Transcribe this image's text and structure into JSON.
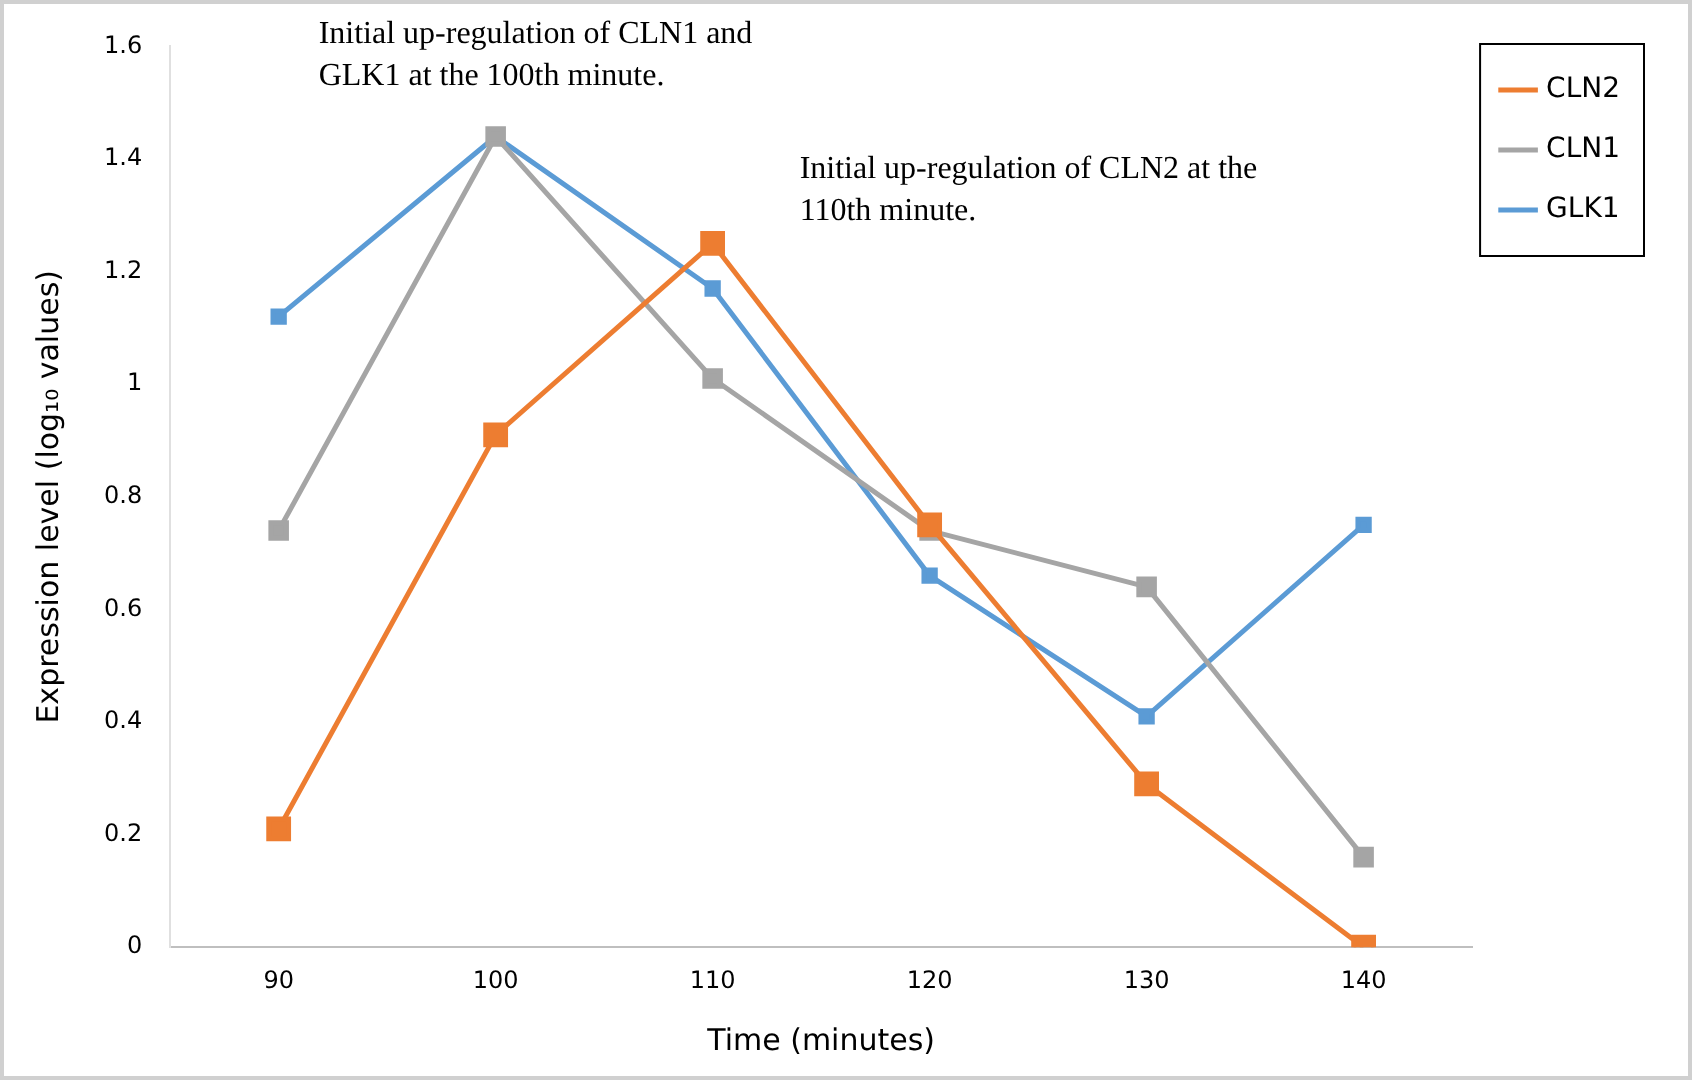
{
  "chart_data": {
    "type": "line",
    "xlabel": "Time (minutes)",
    "ylabel": "Expression level (log₁₀ values)",
    "categories": [
      "90",
      "100",
      "110",
      "120",
      "130",
      "140"
    ],
    "series": [
      {
        "name": "CLN2",
        "color": "#ed7d31",
        "values": [
          0.21,
          0.91,
          1.25,
          0.75,
          0.29,
          0
        ]
      },
      {
        "name": "CLN1",
        "color": "#a5a5a5",
        "values": [
          0.74,
          1.44,
          1.01,
          0.74,
          0.64,
          0.16
        ]
      },
      {
        "name": "GLK1",
        "color": "#5b9bd5",
        "values": [
          1.12,
          1.44,
          1.17,
          0.66,
          0.41,
          0.75
        ]
      }
    ],
    "ylim": [
      0,
      1.6
    ],
    "yticks": [
      0,
      0.2,
      0.4,
      0.6,
      0.8,
      1,
      1.2,
      1.4,
      1.6
    ],
    "annotations": [
      "Initial up-regulation of CLN1 and GLK1 at the 100th minute.",
      "Initial up-regulation of CLN2 at the 110th minute."
    ],
    "grid": false,
    "legend": "right",
    "marker": "square",
    "line_style": "solid"
  }
}
